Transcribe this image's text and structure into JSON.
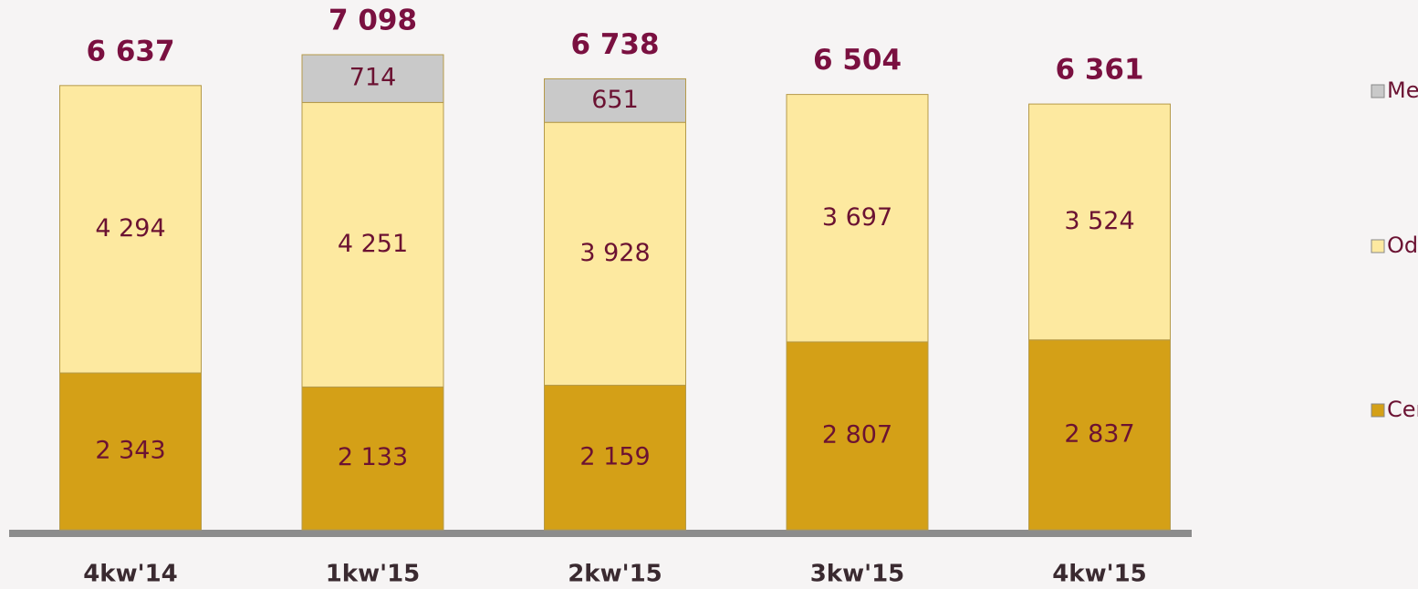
{
  "chart_data": {
    "type": "stacked_bar",
    "categories": [
      "4kw'14",
      "1kw'15",
      "2kw'15",
      "3kw'15",
      "4kw'15"
    ],
    "series": [
      {
        "name": "Centrala",
        "color": "#d4a017",
        "values": [
          2343,
          2133,
          2159,
          2807,
          2837
        ],
        "value_labels": [
          "2 343",
          "2 133",
          "2 159",
          "2 807",
          "2 837"
        ]
      },
      {
        "name": "Oddziały",
        "color": "#fde9a0",
        "values": [
          4294,
          4251,
          3928,
          3697,
          3524
        ],
        "value_labels": [
          "4 294",
          "4 251",
          "3 928",
          "3 697",
          "3 524"
        ]
      },
      {
        "name": "Meritum",
        "color": "#c9c9c9",
        "values": [
          null,
          714,
          651,
          null,
          null
        ]
      }
    ],
    "totals": [
      6637,
      7098,
      6738,
      6504,
      6361
    ],
    "total_labels": [
      "6 637",
      "7 098",
      "6 738",
      "6 504",
      "6 361"
    ]
  }
}
